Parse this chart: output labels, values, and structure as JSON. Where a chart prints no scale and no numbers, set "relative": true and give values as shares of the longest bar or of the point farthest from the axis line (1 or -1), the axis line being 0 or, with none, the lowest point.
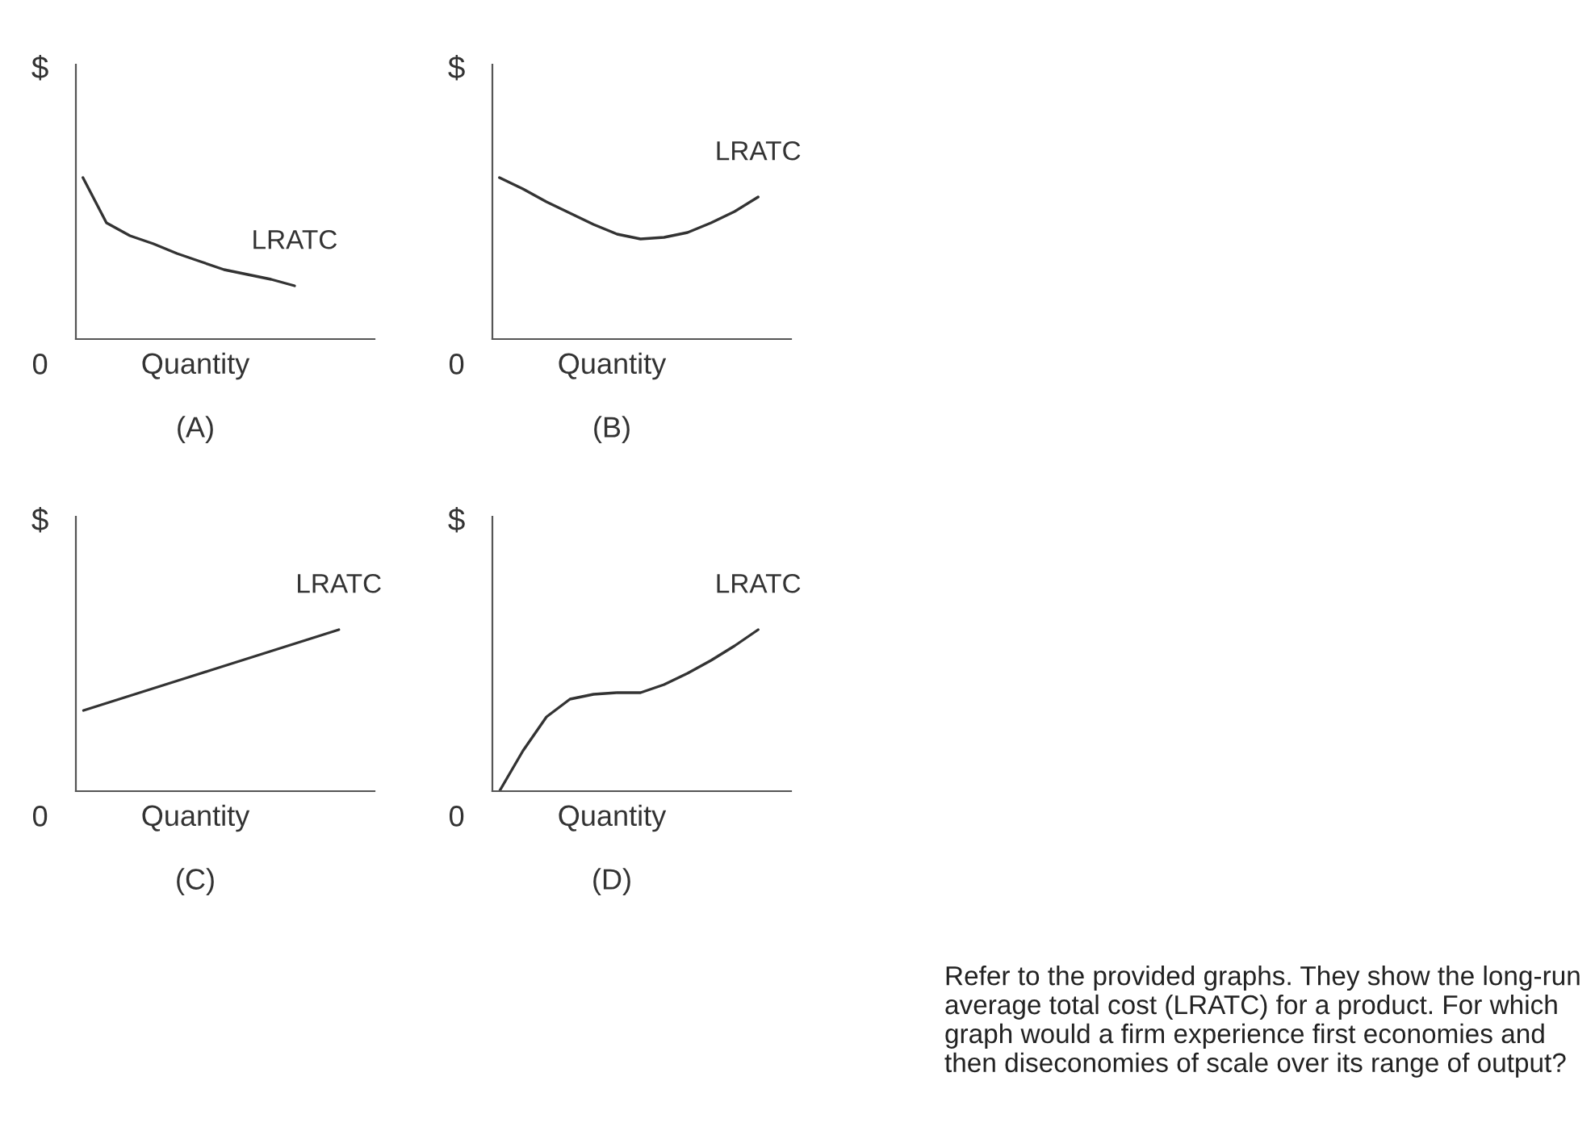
{
  "chart_data": [
    {
      "type": "line",
      "relative": true,
      "ylabel": "$",
      "xlabel": "Quantity",
      "subtitle": "(A)",
      "annotations": [
        "0"
      ],
      "color": "#333333",
      "categories": [
        null,
        null,
        null,
        null,
        null,
        null,
        null,
        null,
        null,
        null,
        null,
        null,
        null
      ],
      "series": [
        {
          "name": "LRATC",
          "values": [
            1,
            0.72,
            0.64,
            0.59,
            0.53,
            0.48,
            0.43,
            0.4,
            0.37,
            0.33,
            null,
            null,
            null
          ]
        }
      ]
    },
    {
      "type": "line",
      "relative": true,
      "ylabel": "$",
      "xlabel": "Quantity",
      "subtitle": "(B)",
      "annotations": [
        "0"
      ],
      "color": "#333333",
      "categories": [
        null,
        null,
        null,
        null,
        null,
        null,
        null,
        null,
        null,
        null,
        null,
        null,
        null
      ],
      "series": [
        {
          "name": "LRATC",
          "values": [
            1,
            0.93,
            0.85,
            0.78,
            0.71,
            0.65,
            0.62,
            0.63,
            0.66,
            0.72,
            0.79,
            0.88,
            null
          ]
        }
      ]
    },
    {
      "type": "line",
      "relative": true,
      "ylabel": "$",
      "xlabel": "Quantity",
      "subtitle": "(C)",
      "annotations": [
        "0"
      ],
      "color": "#333333",
      "categories": [
        null,
        null,
        null,
        null,
        null,
        null,
        null,
        null,
        null,
        null,
        null,
        null
      ],
      "series": [
        {
          "name": "LRATC",
          "values": [
            0.5,
            0.55,
            0.6,
            0.65,
            0.7,
            0.75,
            0.8,
            0.85,
            0.9,
            0.95,
            1,
            null
          ]
        }
      ]
    },
    {
      "type": "line",
      "relative": true,
      "ylabel": "$",
      "xlabel": "Quantity",
      "subtitle": "(D)",
      "annotations": [
        "0"
      ],
      "color": "#333333",
      "categories": [
        null,
        null,
        null,
        null,
        null,
        null,
        null,
        null,
        null,
        null,
        null,
        null,
        null
      ],
      "series": [
        {
          "name": "LRATC",
          "values": [
            0,
            0.25,
            0.46,
            0.57,
            0.6,
            0.61,
            0.61,
            0.66,
            0.73,
            0.81,
            0.9,
            1,
            null
          ]
        }
      ]
    },
    {
      "type": "other",
      "annotations": [
        "Refer to the provided graphs. They show the long-run average total cost (LRATC) for a product. For which graph would a firm experience first economies and then diseconomies of scale over its range of output?"
      ]
    }
  ]
}
